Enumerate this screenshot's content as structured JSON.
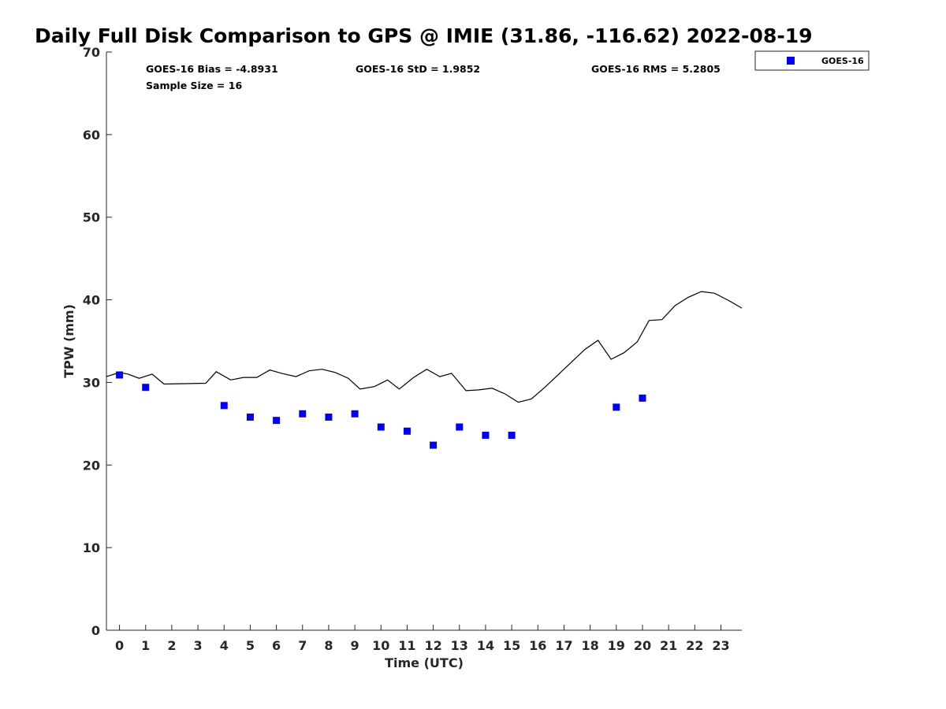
{
  "chart_data": {
    "type": "scatter",
    "title": "Daily Full Disk Comparison to GPS @ IMIE (31.86, -116.62) 2022-08-19",
    "xlabel": "Time (UTC)",
    "ylabel": "TPW (mm)",
    "xlim": [
      -0.5,
      23.8
    ],
    "ylim": [
      0,
      70
    ],
    "xticks": [
      0,
      1,
      2,
      3,
      4,
      5,
      6,
      7,
      8,
      9,
      10,
      11,
      12,
      13,
      14,
      15,
      16,
      17,
      18,
      19,
      20,
      21,
      22,
      23
    ],
    "yticks": [
      0,
      10,
      20,
      30,
      40,
      50,
      60,
      70
    ],
    "stats": {
      "bias": "GOES-16 Bias = -4.8931",
      "std": "GOES-16 StD = 1.9852",
      "rms": "GOES-16 RMS = 5.2805",
      "sample": "Sample Size = 16"
    },
    "legend": [
      {
        "name": "GOES-16",
        "marker": "square",
        "color": "#0000ee"
      }
    ],
    "series": [
      {
        "name": "GPS",
        "kind": "line",
        "color": "#000000",
        "x": [
          -0.5,
          0,
          0.33,
          0.75,
          1.25,
          1.7,
          3.3,
          3.7,
          4.25,
          4.75,
          5.25,
          5.75,
          6.2,
          6.75,
          7.25,
          7.75,
          8.25,
          8.75,
          9.2,
          9.75,
          10.25,
          10.7,
          11.25,
          11.75,
          12.25,
          12.7,
          13.25,
          13.75,
          14.25,
          14.75,
          15.25,
          15.75,
          16.3,
          16.8,
          17.3,
          17.8,
          18.3,
          18.8,
          19.3,
          19.8,
          20.25,
          20.75,
          21.25,
          21.75,
          22.25,
          22.75,
          23.25,
          23.8
        ],
        "y": [
          30.7,
          31.2,
          31.0,
          30.5,
          31.0,
          29.8,
          29.9,
          31.3,
          30.3,
          30.6,
          30.6,
          31.5,
          31.1,
          30.7,
          31.4,
          31.6,
          31.2,
          30.5,
          29.2,
          29.5,
          30.3,
          29.2,
          30.6,
          31.6,
          30.7,
          31.1,
          29.0,
          29.1,
          29.3,
          28.6,
          27.6,
          28.0,
          29.5,
          31.0,
          32.5,
          34.0,
          35.1,
          32.8,
          33.6,
          34.9,
          37.5,
          37.6,
          39.3,
          40.3,
          41.0,
          40.8,
          40.0,
          39.0
        ]
      },
      {
        "name": "GOES-16",
        "kind": "scatter",
        "color": "#0000ee",
        "x": [
          0,
          1,
          4,
          5,
          6,
          7,
          8,
          9,
          10,
          11,
          12,
          13,
          14,
          15,
          19,
          20
        ],
        "y": [
          30.9,
          29.4,
          27.2,
          25.8,
          25.4,
          26.2,
          25.8,
          26.2,
          24.6,
          24.1,
          22.4,
          24.6,
          23.6,
          23.6,
          27.0,
          28.1
        ]
      }
    ]
  }
}
